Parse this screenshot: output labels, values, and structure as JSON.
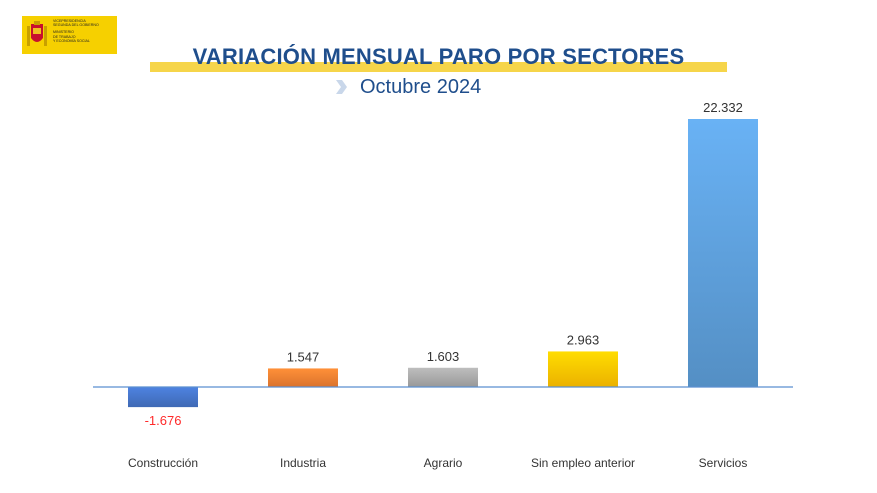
{
  "logo": {
    "lines": [
      "Vicepresidencia",
      "Segunda del Gobierno",
      "",
      "Ministerio",
      "de Trabajo",
      "y Economía Social"
    ],
    "colors": {
      "background": "#f6d000",
      "shield": "#c8102e"
    }
  },
  "header": {
    "title": "VARIACIÓN MENSUAL PARO POR SECTORES",
    "subtitle": "Octubre 2024",
    "chevron_icon": "chevron-right-icon",
    "colors": {
      "title": "#1f4e8c",
      "band": "#f6d54a",
      "chevron": "#c9d7ea"
    }
  },
  "chart_data": {
    "type": "bar",
    "title": "VARIACIÓN MENSUAL PARO POR SECTORES",
    "subtitle": "Octubre 2024",
    "categories": [
      "Construcción",
      "Industria",
      "Agrario",
      "Sin empleo anterior",
      "Servicios"
    ],
    "values": [
      -1676,
      1547,
      1603,
      2963,
      22332
    ],
    "value_labels": [
      "-1.676",
      "1.547",
      "1.603",
      "2.963",
      "22.332"
    ],
    "bar_colors": [
      "#4472c4",
      "#ed7d31",
      "#a5a5a5",
      "#ffc000",
      "#5b9bd5"
    ],
    "negative_label_color": "#ff2a2a",
    "xlabel": "",
    "ylabel": "",
    "ylim": [
      -1676,
      22332
    ],
    "grid": false,
    "legend": false
  }
}
